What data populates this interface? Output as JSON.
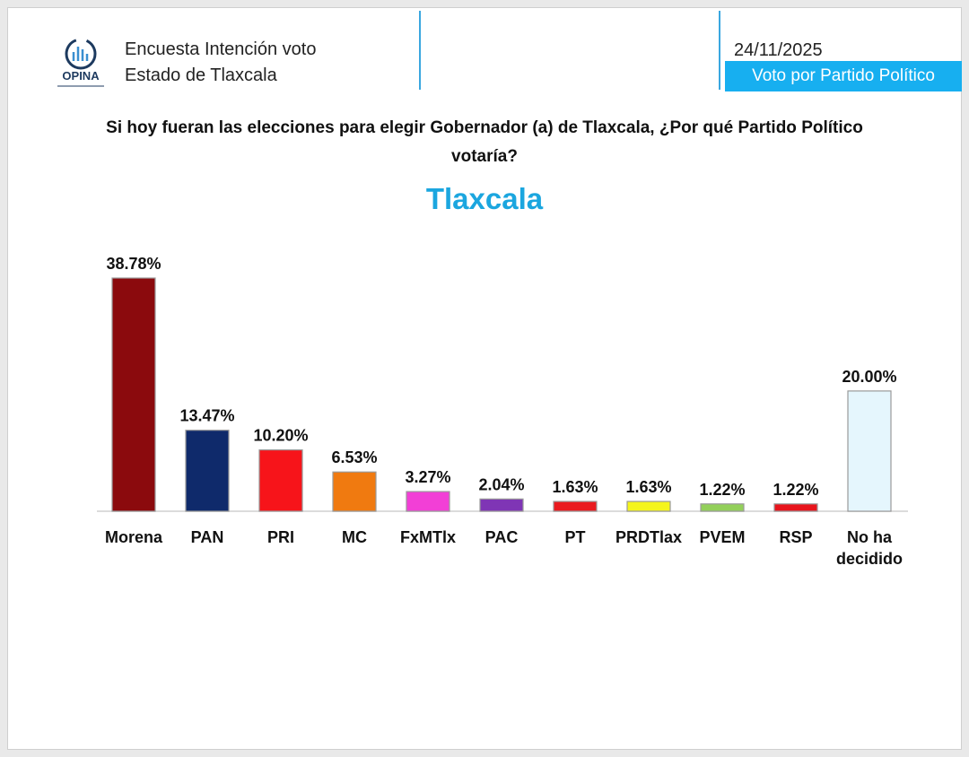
{
  "header": {
    "logo_text": "OPINA",
    "title_line1": "Encuesta Intención voto",
    "title_line2": "Estado de Tlaxcala",
    "date": "24/11/2025",
    "section_badge": "Voto por Partido Político"
  },
  "question": "Si hoy fueran las elecciones para elegir Gobernador (a) de Tlaxcala, ¿Por qué Partido Político votaría?",
  "chart_data": {
    "type": "bar",
    "title": "Tlaxcala",
    "categories": [
      "Morena",
      "PAN",
      "PRI",
      "MC",
      "FxMTlx",
      "PAC",
      "PT",
      "PRDTlax",
      "PVEM",
      "RSP",
      "No ha decidido"
    ],
    "values": [
      38.78,
      13.47,
      10.2,
      6.53,
      3.27,
      2.04,
      1.63,
      1.63,
      1.22,
      1.22,
      20.0
    ],
    "value_labels": [
      "38.78%",
      "13.47%",
      "10.20%",
      "6.53%",
      "3.27%",
      "2.04%",
      "1.63%",
      "1.63%",
      "1.22%",
      "1.22%",
      "20.00%"
    ],
    "colors": [
      "#8b0a0d",
      "#0f2a6b",
      "#f7141a",
      "#f07a10",
      "#f23fd6",
      "#7f35b5",
      "#ea1a1f",
      "#f5f51c",
      "#93d05a",
      "#e8141c",
      "#e5f6fd"
    ],
    "xlabel": "",
    "ylabel": "",
    "ylim": [
      0,
      40
    ],
    "grid": false
  }
}
